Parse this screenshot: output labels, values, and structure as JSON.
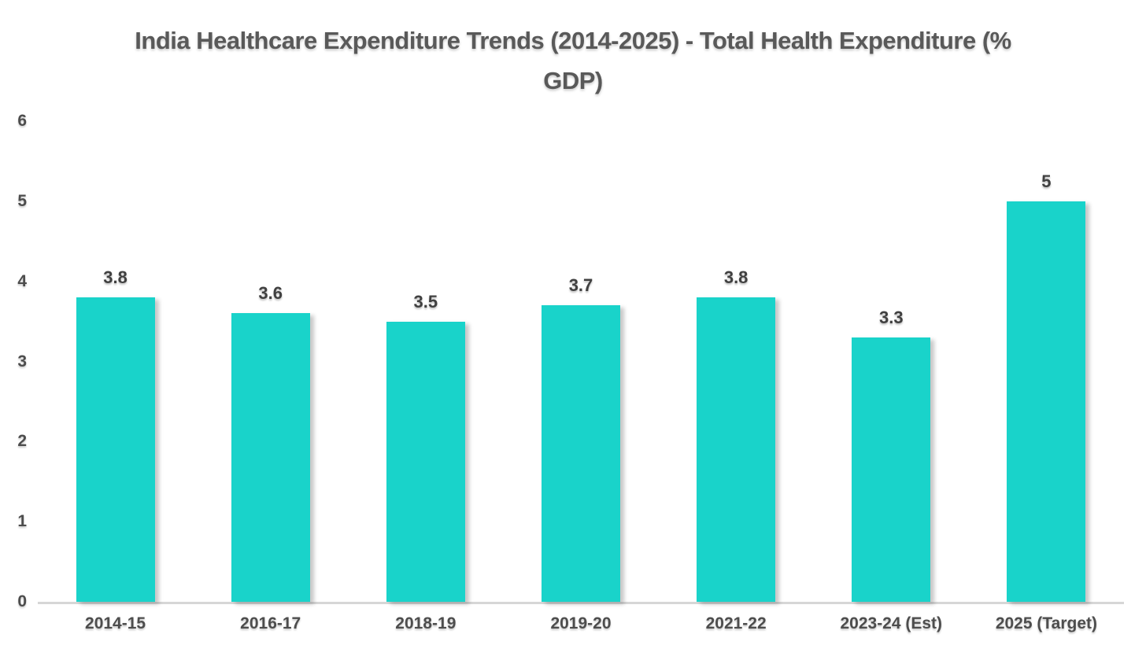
{
  "chart_data": {
    "type": "bar",
    "title": "India Healthcare Expenditure Trends (2014-2025) - Total Health Expenditure (% GDP)",
    "categories": [
      "2014-15",
      "2016-17",
      "2018-19",
      "2019-20",
      "2021-22",
      "2023-24 (Est)",
      "2025 (Target)"
    ],
    "values": [
      3.8,
      3.6,
      3.5,
      3.7,
      3.8,
      3.3,
      5
    ],
    "value_labels": [
      "3.8",
      "3.6",
      "3.5",
      "3.7",
      "3.8",
      "3.3",
      "5"
    ],
    "xlabel": "",
    "ylabel": "",
    "ylim": [
      0,
      6
    ],
    "yticks": [
      0,
      1,
      2,
      3,
      4,
      5,
      6
    ],
    "grid": false,
    "legend": "none",
    "bar_color": "#19d3ca",
    "axis_line_color": "#d6d6d6",
    "title_color": "#595959",
    "label_color": "#404040"
  }
}
